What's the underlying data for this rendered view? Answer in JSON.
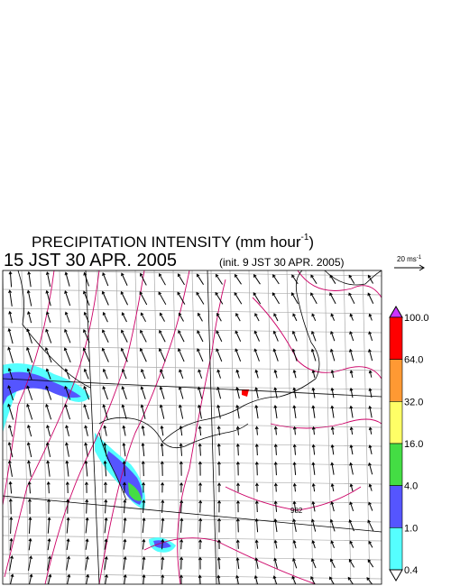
{
  "header": {
    "title": {
      "text": "PRECIPITATION INTENSITY (mm hour",
      "superscript": "-1",
      "suffix": ")"
    },
    "valid_time": "15 JST 30 APR. 2005",
    "init_time": "(init. 9 JST 30 APR. 2005)"
  },
  "vector_scale": {
    "text": "20 ms",
    "superscript": "-1"
  },
  "colorbar": {
    "levels": [
      "100.0",
      "64.0",
      "32.0",
      "16.0",
      "4.0",
      "1.0",
      "0.4"
    ],
    "colors": [
      "#ff0000",
      "#ff9933",
      "#ffff66",
      "#44dd44",
      "#5555ff",
      "#55ffff"
    ],
    "over_color": "#cc33ff",
    "under_color": "#ffffff"
  },
  "contour_labels": [
    "982"
  ]
}
